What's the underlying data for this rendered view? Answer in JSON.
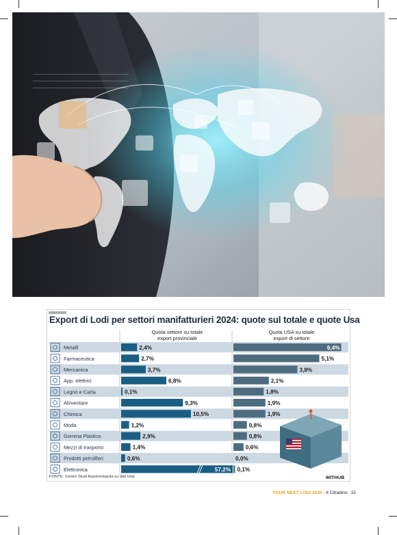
{
  "chart_data": {
    "type": "bar",
    "title": "Export di Lodi per settori manifatturieri 2024: quote sul totale e quote Usa",
    "categories": [
      "Metalli",
      "Farmaceutica",
      "Meccanica",
      "App. elettrici",
      "Legno e Carta",
      "Alimentare",
      "Chimica",
      "Moda",
      "Gomma Plastica",
      "Mezzi di trasporto",
      "Prodotti petroliferi",
      "Elettronica"
    ],
    "series": [
      {
        "name": "Quota settore su totale export provinciale",
        "values": [
          2.4,
          2.7,
          3.7,
          6.8,
          0.1,
          9.3,
          10.5,
          1.2,
          2.9,
          1.4,
          0.6,
          57.2
        ],
        "labels": [
          "2,4%",
          "2,7%",
          "3,7%",
          "6,8%",
          "0,1%",
          "9,3%",
          "10,5%",
          "1,2%",
          "2,9%",
          "1,4%",
          "0,6%",
          "57,2%"
        ]
      },
      {
        "name": "Quota USA su totale export di settore",
        "values": [
          6.4,
          5.1,
          3.8,
          2.1,
          1.8,
          1.9,
          1.9,
          0.8,
          0.8,
          0.6,
          0.0,
          0.1
        ],
        "labels": [
          "6,4%",
          "5,1%",
          "3,8%",
          "2,1%",
          "1,8%",
          "1,9%",
          "1,9%",
          "0,8%",
          "0,8%",
          "0,6%",
          "0,0%",
          "0,1%"
        ]
      }
    ],
    "column_headers": [
      "Quota settore su totale export provinciale",
      "Quota USA su totale export di settore"
    ],
    "colors": {
      "bar_left": "#1b5e83",
      "bar_right": "#4e6c80",
      "row_band": "#cdd9e2",
      "icon": "#2d5a86",
      "title": "#1e2a40"
    },
    "left_axis_break": true
  },
  "panel": {
    "header_left": "Quota settore su totale export provinciale",
    "header_left_l1": "Quota settore su totale",
    "header_left_l2": "export provinciale",
    "header_right_l1": "Quota USA su totale",
    "header_right_l2": "export di settore",
    "source": "FONTE: Centro Studi Assolombarda su dati Istat",
    "brand": "WITHUB"
  },
  "page_footer": {
    "magazine": "YOUR NEXT LODI 2030",
    "separator": " - ",
    "newspaper": "Il Cittadino",
    "page": "15"
  },
  "photo": {
    "description_icons": [
      "world-map",
      "user-icon",
      "envelope-icon",
      "pointing-hand"
    ]
  }
}
